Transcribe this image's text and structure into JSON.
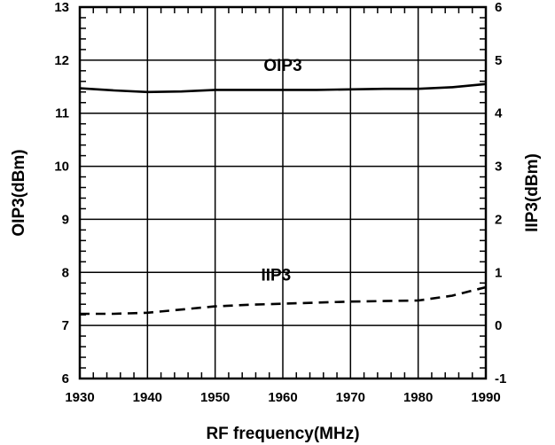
{
  "chart_data": {
    "type": "line",
    "title": "",
    "xlabel": "RF frequency(MHz)",
    "ylabel_left": "OIP3(dBm)",
    "ylabel_right": "IIP3(dBm)",
    "xlim": [
      1930,
      1990
    ],
    "ylim_left": [
      6,
      13
    ],
    "ylim_right": [
      -1,
      6
    ],
    "x_ticks": [
      "1930",
      "1940",
      "1950",
      "1960",
      "1970",
      "1980",
      "1990"
    ],
    "y_left_ticks": [
      "6",
      "7",
      "8",
      "9",
      "10",
      "11",
      "12",
      "13"
    ],
    "y_right_ticks": [
      "-1",
      "0",
      "1",
      "2",
      "3",
      "4",
      "5",
      "6"
    ],
    "grid": true,
    "series": [
      {
        "name": "OIP3",
        "axis": "left",
        "style": "solid",
        "x": [
          1930,
          1935,
          1940,
          1945,
          1950,
          1955,
          1960,
          1965,
          1970,
          1975,
          1980,
          1985,
          1990
        ],
        "y": [
          11.47,
          11.43,
          11.4,
          11.41,
          11.44,
          11.44,
          11.44,
          11.44,
          11.45,
          11.46,
          11.46,
          11.49,
          11.55
        ]
      },
      {
        "name": "IIP3",
        "axis": "right",
        "style": "dashed",
        "x": [
          1930,
          1935,
          1940,
          1945,
          1950,
          1955,
          1960,
          1965,
          1970,
          1975,
          1980,
          1985,
          1990
        ],
        "y": [
          0.22,
          0.22,
          0.24,
          0.3,
          0.36,
          0.39,
          0.41,
          0.43,
          0.45,
          0.46,
          0.47,
          0.56,
          0.72
        ]
      }
    ]
  }
}
